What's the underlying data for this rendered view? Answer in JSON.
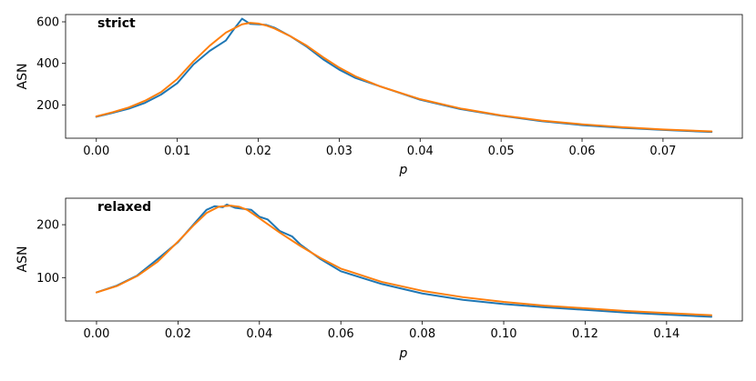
{
  "colors": {
    "series_a": "#1f77b4",
    "series_b": "#ff7f0e",
    "axis": "#000000"
  },
  "chart_data": [
    {
      "type": "line",
      "annotation": "strict",
      "xlabel": "p",
      "ylabel": "ASN",
      "xlim": [
        -0.0038,
        0.0798
      ],
      "ylim": [
        40,
        635
      ],
      "xticks": [
        0.0,
        0.01,
        0.02,
        0.03,
        0.04,
        0.05,
        0.06,
        0.07
      ],
      "xtick_labels": [
        "0.00",
        "0.01",
        "0.02",
        "0.03",
        "0.04",
        "0.05",
        "0.06",
        "0.07"
      ],
      "yticks": [
        200,
        400,
        600
      ],
      "ytick_labels": [
        "200",
        "400",
        "600"
      ],
      "grid": false,
      "series": [
        {
          "x": [
            0.0,
            0.002,
            0.004,
            0.006,
            0.008,
            0.01,
            0.012,
            0.014,
            0.016,
            0.017,
            0.018,
            0.019,
            0.02,
            0.021,
            0.022,
            0.024,
            0.026,
            0.028,
            0.03,
            0.032,
            0.035,
            0.04,
            0.045,
            0.05,
            0.055,
            0.06,
            0.065,
            0.07,
            0.076
          ],
          "y": [
            143,
            162,
            182,
            210,
            250,
            305,
            395,
            460,
            510,
            565,
            615,
            590,
            588,
            585,
            572,
            530,
            480,
            420,
            370,
            330,
            290,
            225,
            180,
            148,
            122,
            103,
            90,
            80,
            70
          ]
        },
        {
          "x": [
            0.0,
            0.002,
            0.004,
            0.006,
            0.008,
            0.01,
            0.012,
            0.014,
            0.016,
            0.018,
            0.019,
            0.02,
            0.021,
            0.022,
            0.024,
            0.026,
            0.028,
            0.03,
            0.032,
            0.035,
            0.04,
            0.045,
            0.05,
            0.055,
            0.06,
            0.065,
            0.07,
            0.076
          ],
          "y": [
            145,
            165,
            188,
            220,
            262,
            325,
            410,
            485,
            548,
            588,
            595,
            592,
            582,
            568,
            530,
            485,
            430,
            380,
            338,
            290,
            228,
            183,
            150,
            125,
            107,
            93,
            82,
            73
          ]
        }
      ]
    },
    {
      "type": "line",
      "annotation": "relaxed",
      "xlabel": "p",
      "ylabel": "ASN",
      "xlim": [
        -0.0076,
        0.1586
      ],
      "ylim": [
        18,
        250
      ],
      "xticks": [
        0.0,
        0.02,
        0.04,
        0.06,
        0.08,
        0.1,
        0.12,
        0.14
      ],
      "xtick_labels": [
        "0.00",
        "0.02",
        "0.04",
        "0.06",
        "0.08",
        "0.10",
        "0.12",
        "0.14"
      ],
      "yticks": [
        100,
        200
      ],
      "ytick_labels": [
        "100",
        "200"
      ],
      "grid": false,
      "series": [
        {
          "x": [
            0.0,
            0.005,
            0.01,
            0.015,
            0.02,
            0.024,
            0.027,
            0.029,
            0.031,
            0.032,
            0.034,
            0.036,
            0.038,
            0.04,
            0.042,
            0.045,
            0.048,
            0.05,
            0.055,
            0.06,
            0.07,
            0.08,
            0.09,
            0.1,
            0.11,
            0.12,
            0.13,
            0.14,
            0.151
          ],
          "y": [
            72,
            85,
            104,
            135,
            167,
            202,
            228,
            235,
            233,
            238,
            232,
            230,
            228,
            215,
            210,
            188,
            178,
            163,
            135,
            112,
            88,
            70,
            58,
            50,
            44,
            39,
            34,
            30,
            26
          ]
        },
        {
          "x": [
            0.0,
            0.005,
            0.01,
            0.015,
            0.02,
            0.024,
            0.027,
            0.03,
            0.033,
            0.035,
            0.037,
            0.04,
            0.045,
            0.05,
            0.055,
            0.06,
            0.07,
            0.08,
            0.09,
            0.1,
            0.11,
            0.12,
            0.13,
            0.14,
            0.151
          ],
          "y": [
            72,
            84,
            103,
            130,
            168,
            200,
            222,
            234,
            236,
            234,
            228,
            212,
            185,
            160,
            137,
            117,
            92,
            75,
            63,
            54,
            47,
            42,
            37,
            33,
            29
          ]
        }
      ]
    }
  ]
}
